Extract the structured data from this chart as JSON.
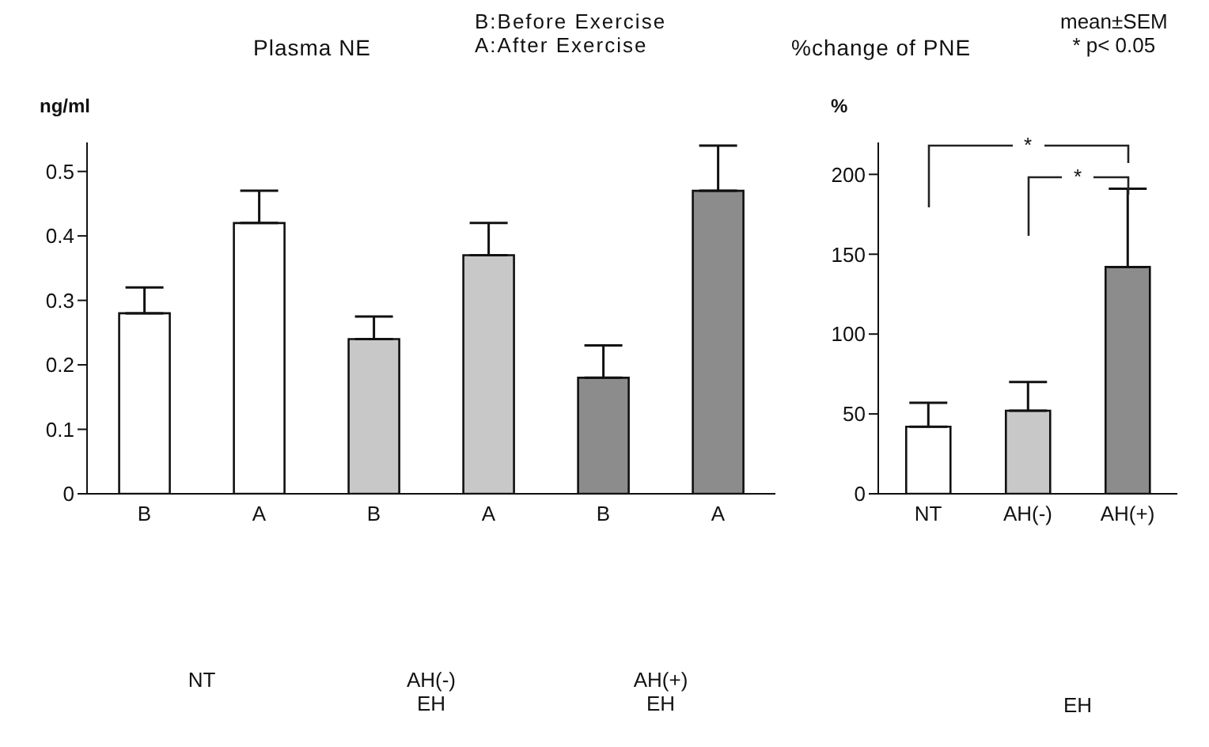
{
  "chart_data": [
    {
      "type": "bar",
      "title": "Plasma NE",
      "ylabel": "ng/ml",
      "categories": [
        "B",
        "A",
        "B",
        "A",
        "B",
        "A"
      ],
      "values": [
        0.28,
        0.42,
        0.24,
        0.37,
        0.18,
        0.47
      ],
      "errors": [
        [
          0.28,
          0.32
        ],
        [
          0.42,
          0.47
        ],
        [
          0.24,
          0.275
        ],
        [
          0.37,
          0.42
        ],
        [
          0.18,
          0.23
        ],
        [
          0.47,
          0.54
        ]
      ],
      "colors": [
        "#ffffff",
        "#ffffff",
        "#c8c8c8",
        "#c8c8c8",
        "#8c8c8c",
        "#8c8c8c"
      ],
      "ylim": [
        0,
        0.545
      ],
      "yticks": [
        0,
        0.1,
        0.2,
        0.3,
        0.4,
        0.5
      ],
      "annotations": [
        "NT",
        "AH(-)\nEH",
        "AH(+)\nEH",
        "B:Before Exercise\nA:After Exercise"
      ]
    },
    {
      "type": "bar",
      "title": "%change of PNE",
      "ylabel": "%",
      "categories": [
        "NT",
        "AH(-)",
        "AH(+)"
      ],
      "values": [
        42,
        52,
        142
      ],
      "errors": [
        [
          42,
          57
        ],
        [
          52,
          70
        ],
        [
          142,
          191
        ]
      ],
      "colors": [
        "#ffffff",
        "#c8c8c8",
        "#8c8c8c"
      ],
      "ylim": [
        0,
        220
      ],
      "yticks": [
        0,
        50,
        100,
        150,
        200
      ],
      "annotations": [
        "EH",
        "*",
        "*",
        "mean±SEM\n* p< 0.05"
      ]
    }
  ]
}
